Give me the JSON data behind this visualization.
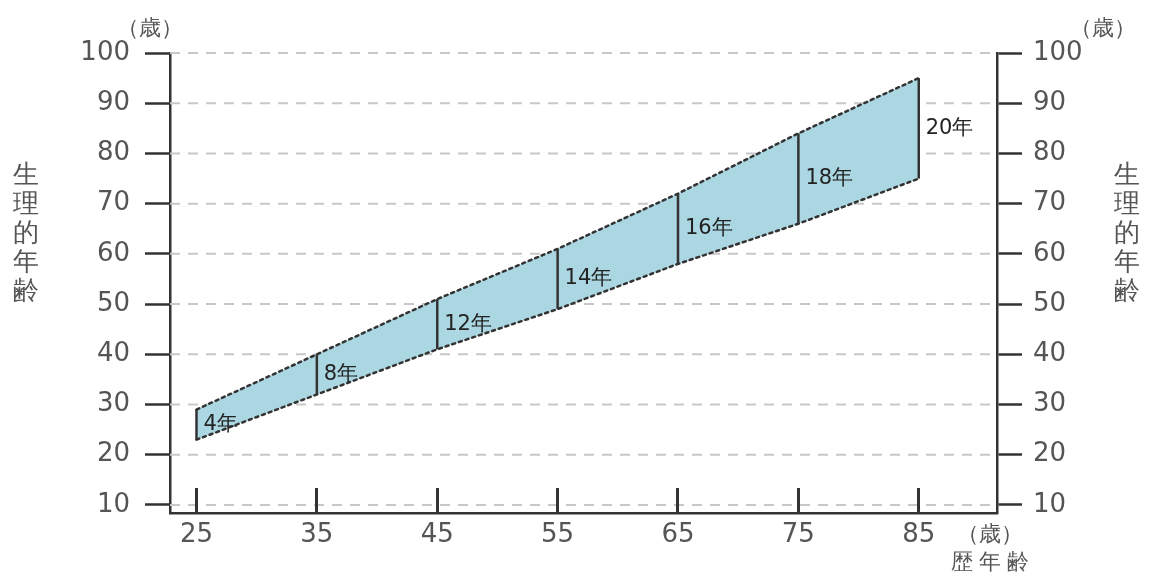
{
  "chart_data": {
    "type": "line",
    "x": [
      25,
      35,
      45,
      55,
      65,
      75,
      85
    ],
    "series": [
      {
        "type": "line",
        "color": "#333333",
        "values": [
          23,
          32,
          41,
          49,
          58,
          66,
          75
        ],
        "errors": [
          [
            23,
            29
          ],
          [
            32,
            40
          ],
          [
            41,
            51
          ],
          [
            49,
            61
          ],
          [
            58,
            72
          ],
          [
            66,
            84
          ],
          [
            75,
            95
          ]
        ]
      },
      {
        "type": "area",
        "color": "#abd7e3",
        "values": [
          29,
          40,
          51,
          61,
          72,
          84,
          95
        ]
      }
    ],
    "xlabel": "歴年齢",
    "ylabel": "生理的年齢",
    "y2label": "生理的年齢",
    "xlim": [
      22.8,
      91.5
    ],
    "xticks": [
      25,
      35,
      45,
      55,
      65,
      75,
      85
    ],
    "ylim": [
      8.4,
      100
    ],
    "yticks": [
      10,
      20,
      30,
      40,
      50,
      60,
      70,
      80,
      90,
      100
    ],
    "y2lim": [
      8.4,
      100
    ],
    "y2ticks": [
      10,
      20,
      30,
      40,
      50,
      60,
      70,
      80,
      90,
      100
    ],
    "annotations": [
      "4年",
      "8年",
      "12年",
      "14年",
      "16年",
      "18年",
      "20年",
      "（歳）",
      "（歳）",
      "（歳）"
    ],
    "grid": "y",
    "marker": "none",
    "line_style": "dotted"
  }
}
